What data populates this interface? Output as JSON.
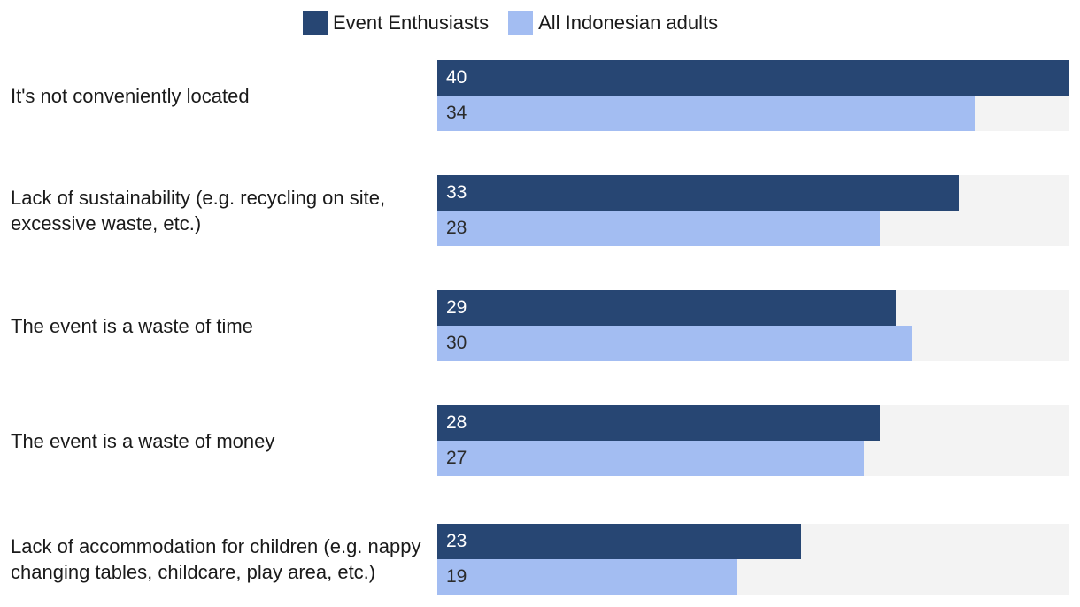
{
  "legend": {
    "series1": "Event Enthusiasts",
    "series2": "All Indonesian adults"
  },
  "colors": {
    "series1": "#274673",
    "series2": "#a3bdf2",
    "track": "#f3f3f3",
    "label_on_dark": "#ffffff",
    "label_on_light": "#2b2b2b"
  },
  "chart_data": {
    "type": "bar",
    "orientation": "horizontal",
    "title": "",
    "xlabel": "",
    "ylabel": "",
    "xlim": [
      0,
      40
    ],
    "grid": false,
    "legend_position": "top",
    "categories": [
      "It's not conveniently located",
      "Lack of sustainability (e.g. recycling on site, excessive waste, etc.)",
      "The event is a waste of time",
      "The event is a waste of money",
      "Lack of accommodation for children (e.g. nappy changing tables, childcare, play area, etc.)"
    ],
    "series": [
      {
        "name": "Event Enthusiasts",
        "values": [
          40,
          33,
          29,
          28,
          23
        ]
      },
      {
        "name": "All Indonesian adults",
        "values": [
          34,
          28,
          30,
          27,
          19
        ]
      }
    ]
  }
}
